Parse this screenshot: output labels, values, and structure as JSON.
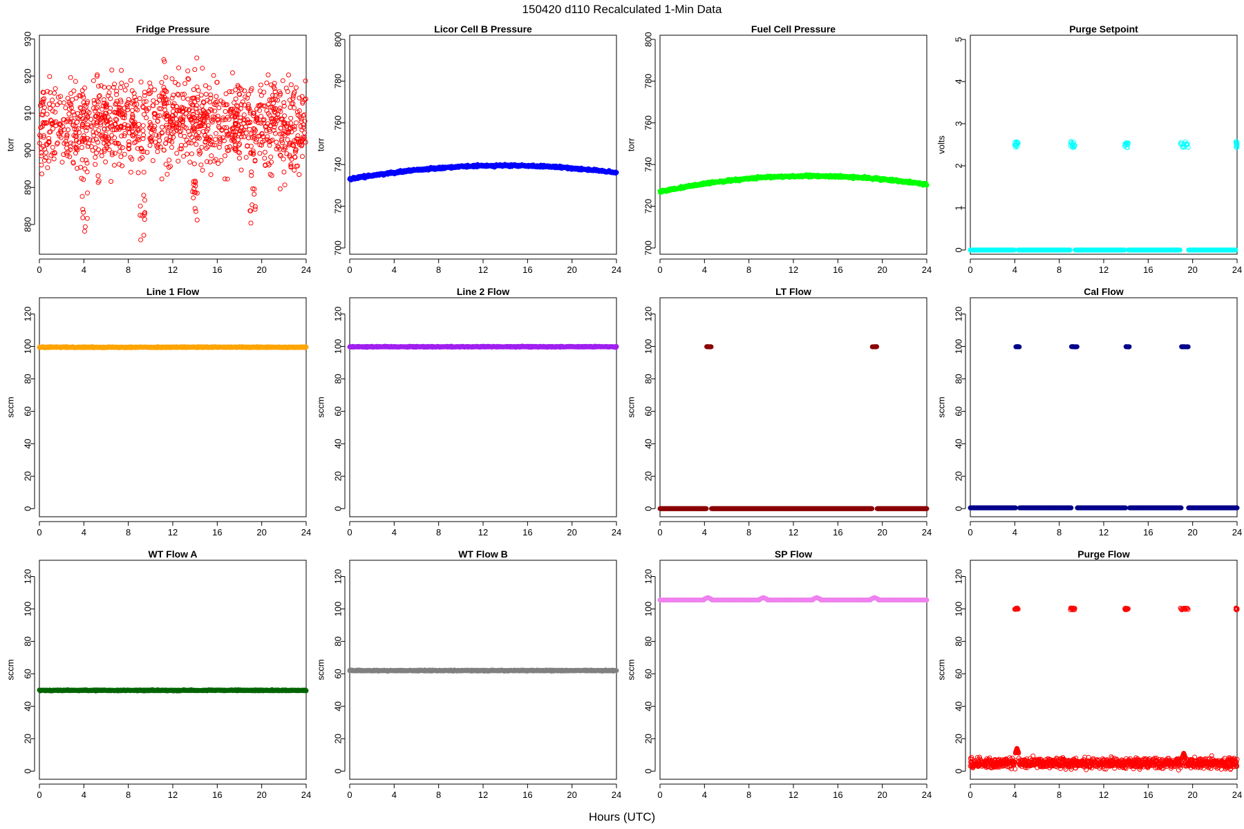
{
  "figure": {
    "title": "150420   d110   Recalculated 1-Min Data",
    "xlabel": "Hours (UTC)"
  },
  "chart_data": [
    {
      "type": "scatter",
      "title": "Fridge Pressure",
      "ylabel": "torr",
      "xlim": [
        0,
        24
      ],
      "ylim": [
        872,
        931
      ],
      "xticks": [
        0,
        4,
        8,
        12,
        16,
        20,
        24
      ],
      "yticks": [
        880,
        890,
        900,
        910,
        920,
        930
      ],
      "color": "#ff0000",
      "marker": "open",
      "series_desc": {
        "kind": "noisy",
        "base": 906,
        "amp": 2,
        "noise": 6,
        "dips": [
          [
            4.1,
            873
          ],
          [
            9.3,
            873
          ],
          [
            14.0,
            881
          ],
          [
            19.2,
            878
          ]
        ]
      }
    },
    {
      "type": "scatter",
      "title": "Licor Cell B Pressure",
      "ylabel": "torr",
      "xlim": [
        0,
        24
      ],
      "ylim": [
        697,
        802
      ],
      "xticks": [
        0,
        4,
        8,
        12,
        16,
        20,
        24
      ],
      "yticks": [
        700,
        720,
        740,
        760,
        780,
        800
      ],
      "color": "#0000ff",
      "marker": "filled",
      "series_desc": {
        "kind": "arc",
        "start": 733,
        "peak": 739.5,
        "peak_x": 14,
        "end": 736
      }
    },
    {
      "type": "scatter",
      "title": "Fuel Cell Pressure",
      "ylabel": "torr",
      "xlim": [
        0,
        24
      ],
      "ylim": [
        697,
        802
      ],
      "xticks": [
        0,
        4,
        8,
        12,
        16,
        20,
        24
      ],
      "yticks": [
        700,
        720,
        740,
        760,
        780,
        800
      ],
      "color": "#00ff00",
      "marker": "filled",
      "series_desc": {
        "kind": "arc",
        "start": 727,
        "peak": 734.5,
        "peak_x": 13.5,
        "end": 730.5
      }
    },
    {
      "type": "scatter",
      "title": "Purge Setpoint",
      "ylabel": "volts",
      "xlim": [
        0,
        24
      ],
      "ylim": [
        -0.1,
        5.1
      ],
      "xticks": [
        0,
        4,
        8,
        12,
        16,
        20,
        24
      ],
      "yticks": [
        0,
        1,
        2,
        3,
        4,
        5
      ],
      "color": "#00ffff",
      "marker": "open",
      "series_desc": {
        "kind": "baseline_bursts",
        "base": 0,
        "burst": 2.5,
        "bursts": [
          [
            4.0,
            4.3
          ],
          [
            9.0,
            9.4
          ],
          [
            13.9,
            14.2
          ],
          [
            18.9,
            19.6
          ],
          [
            23.9,
            24.0
          ]
        ]
      }
    },
    {
      "type": "scatter",
      "title": "Line 1 Flow",
      "ylabel": "sccm",
      "xlim": [
        0,
        24
      ],
      "ylim": [
        -5,
        130
      ],
      "xticks": [
        0,
        4,
        8,
        12,
        16,
        20,
        24
      ],
      "yticks": [
        0,
        20,
        40,
        60,
        80,
        100,
        120
      ],
      "color": "#ffa500",
      "marker": "filled",
      "series_desc": {
        "kind": "flat",
        "base": 99.5
      }
    },
    {
      "type": "scatter",
      "title": "Line 2 Flow",
      "ylabel": "sccm",
      "xlim": [
        0,
        24
      ],
      "ylim": [
        -5,
        130
      ],
      "xticks": [
        0,
        4,
        8,
        12,
        16,
        20,
        24
      ],
      "yticks": [
        0,
        20,
        40,
        60,
        80,
        100,
        120
      ],
      "color": "#a020f0",
      "marker": "filled",
      "series_desc": {
        "kind": "flat",
        "base": 99.8
      }
    },
    {
      "type": "scatter",
      "title": "LT Flow",
      "ylabel": "sccm",
      "xlim": [
        0,
        24
      ],
      "ylim": [
        -5,
        130
      ],
      "xticks": [
        0,
        4,
        8,
        12,
        16,
        20,
        24
      ],
      "yticks": [
        0,
        20,
        40,
        60,
        80,
        100,
        120
      ],
      "color": "#8b0000",
      "marker": "filled",
      "series_desc": {
        "kind": "baseline_bursts",
        "base": 0,
        "burst": 99.8,
        "bursts": [
          [
            4.2,
            4.6
          ],
          [
            19.1,
            19.5
          ]
        ]
      }
    },
    {
      "type": "scatter",
      "title": "Cal Flow",
      "ylabel": "sccm",
      "xlim": [
        0,
        24
      ],
      "ylim": [
        -5,
        130
      ],
      "xticks": [
        0,
        4,
        8,
        12,
        16,
        20,
        24
      ],
      "yticks": [
        0,
        20,
        40,
        60,
        80,
        100,
        120
      ],
      "color": "#00008b",
      "marker": "filled",
      "series_desc": {
        "kind": "baseline_bursts",
        "base": 0.5,
        "burst": 99.8,
        "bursts": [
          [
            4.1,
            4.4
          ],
          [
            9.1,
            9.6
          ],
          [
            14.0,
            14.3
          ],
          [
            19.0,
            19.6
          ]
        ]
      }
    },
    {
      "type": "scatter",
      "title": "WT Flow A",
      "ylabel": "sccm",
      "xlim": [
        0,
        24
      ],
      "ylim": [
        -5,
        130
      ],
      "xticks": [
        0,
        4,
        8,
        12,
        16,
        20,
        24
      ],
      "yticks": [
        0,
        20,
        40,
        60,
        80,
        100,
        120
      ],
      "color": "#006400",
      "marker": "filled",
      "series_desc": {
        "kind": "flat",
        "base": 49.8
      }
    },
    {
      "type": "scatter",
      "title": "WT Flow B",
      "ylabel": "sccm",
      "xlim": [
        0,
        24
      ],
      "ylim": [
        -5,
        130
      ],
      "xticks": [
        0,
        4,
        8,
        12,
        16,
        20,
        24
      ],
      "yticks": [
        0,
        20,
        40,
        60,
        80,
        100,
        120
      ],
      "color": "#808080",
      "marker": "filled",
      "series_desc": {
        "kind": "flat",
        "base": 62
      }
    },
    {
      "type": "scatter",
      "title": "SP Flow",
      "ylabel": "sccm",
      "xlim": [
        0,
        24
      ],
      "ylim": [
        -5,
        130
      ],
      "xticks": [
        0,
        4,
        8,
        12,
        16,
        20,
        24
      ],
      "yticks": [
        0,
        20,
        40,
        60,
        80,
        100,
        120
      ],
      "color": "#ee82ee",
      "marker": "filled",
      "series_desc": {
        "kind": "flat_bumps",
        "base": 105.5,
        "bump": 107,
        "bumps": [
          4.3,
          9.3,
          14.1,
          19.3
        ]
      }
    },
    {
      "type": "scatter",
      "title": "Purge Flow",
      "ylabel": "sccm",
      "xlim": [
        0,
        24
      ],
      "ylim": [
        -5,
        130
      ],
      "xticks": [
        0,
        4,
        8,
        12,
        16,
        20,
        24
      ],
      "yticks": [
        0,
        20,
        40,
        60,
        80,
        100,
        120
      ],
      "color": "#ff0000",
      "marker": "open",
      "series_desc": {
        "kind": "baseline_bursts_noisy",
        "base": 5,
        "noise": 1.5,
        "burst": 100,
        "bursts": [
          [
            4.0,
            4.3
          ],
          [
            9.0,
            9.4
          ],
          [
            13.9,
            14.2
          ],
          [
            18.9,
            19.6
          ],
          [
            23.9,
            24.0
          ]
        ],
        "spikes": [
          [
            4.2,
            14
          ],
          [
            19.2,
            11
          ]
        ]
      }
    }
  ]
}
